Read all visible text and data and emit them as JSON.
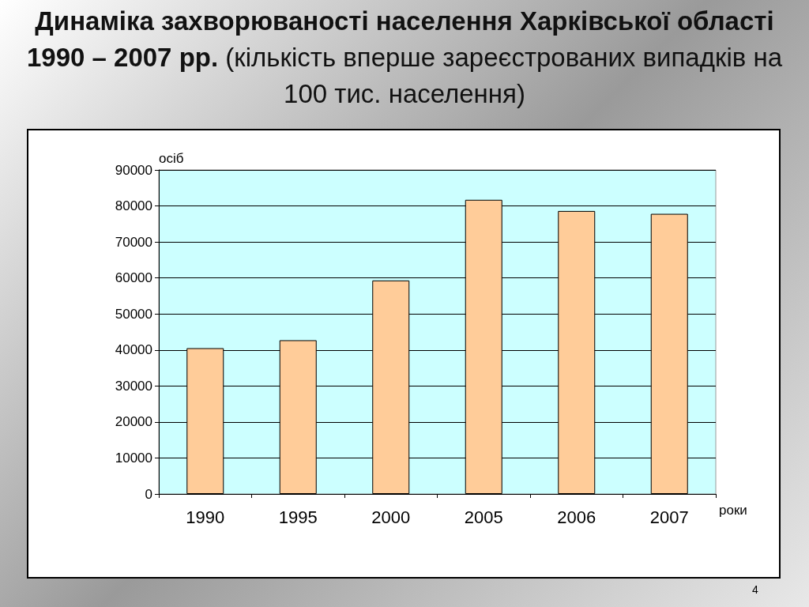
{
  "chart_data": {
    "type": "bar",
    "title": "Динаміка захворюваності населення Харківської області 1990 – 2007 рр.",
    "subtitle": "(кількість вперше зареєстрованих випадків на 100 тис. населення)",
    "ylabel": "осіб",
    "xlabel": "роки",
    "annotations": [
      "4"
    ],
    "categories": [
      "1990",
      "1995",
      "2000",
      "2005",
      "2006",
      "2007"
    ],
    "values": [
      40500,
      42700,
      59300,
      81700,
      78600,
      77800
    ],
    "color": "#ffcc99",
    "ylim": [
      0,
      90000
    ],
    "yticks": [
      0,
      10000,
      20000,
      30000,
      40000,
      50000,
      60000,
      70000,
      80000,
      90000
    ],
    "grid": "y"
  }
}
